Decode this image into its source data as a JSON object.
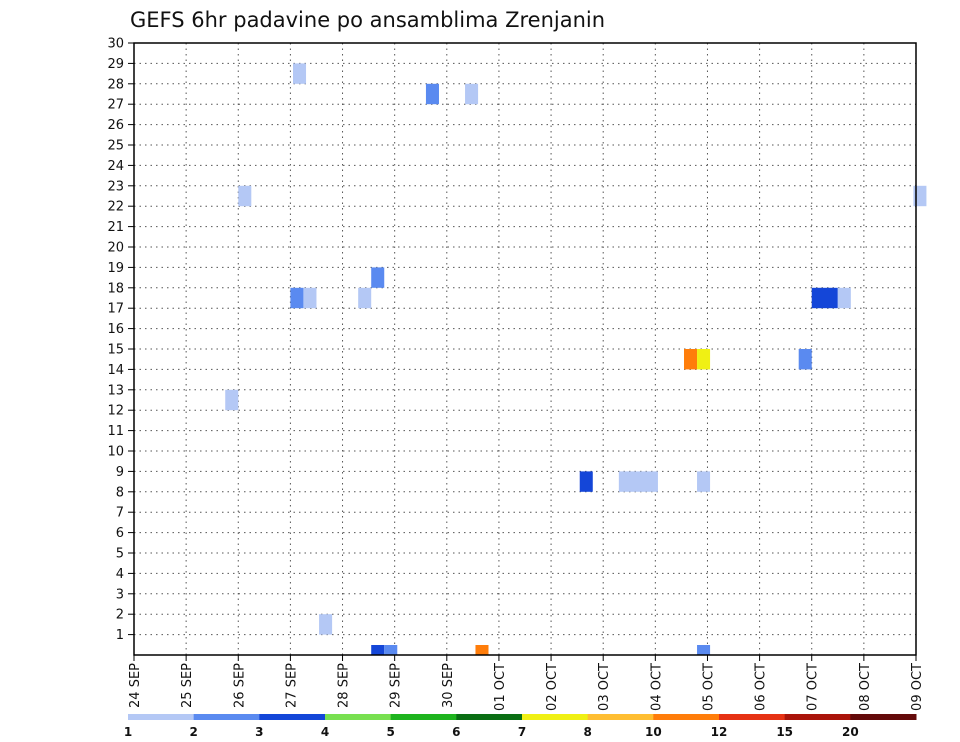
{
  "chart_data": {
    "type": "heatmap",
    "title": "GEFS 6hr padavine po ansamblima Zrenjanin",
    "xlabel": "",
    "ylabel": "",
    "x_range_days": [
      0,
      15
    ],
    "y_range": [
      0,
      30
    ],
    "y_ticks": [
      1,
      2,
      3,
      4,
      5,
      6,
      7,
      8,
      9,
      10,
      11,
      12,
      13,
      14,
      15,
      16,
      17,
      18,
      19,
      20,
      21,
      22,
      23,
      24,
      25,
      26,
      27,
      28,
      29,
      30
    ],
    "x_tick_labels": [
      "24 SEP",
      "25 SEP",
      "26 SEP",
      "27 SEP",
      "28 SEP",
      "29 SEP",
      "30 SEP",
      "01 OCT",
      "02 OCT",
      "03 OCT",
      "04 OCT",
      "05 OCT",
      "06 OCT",
      "07 OCT",
      "08 OCT",
      "09 OCT"
    ],
    "grid": true,
    "colorbar": {
      "bounds": [
        1,
        2,
        3,
        4,
        5,
        6,
        7,
        8,
        10,
        12,
        15,
        20
      ],
      "labels": [
        "1",
        "2",
        "3",
        "4",
        "5",
        "6",
        "7",
        "8",
        "10",
        "12",
        "15",
        "20"
      ],
      "colors": [
        "#b4c8f5",
        "#5a8af0",
        "#1446d8",
        "#78e050",
        "#1eb41e",
        "#0a6e14",
        "#f0f014",
        "#ffbe32",
        "#ff7d0a",
        "#e63214",
        "#aa140a",
        "#640a0a"
      ]
    },
    "cells": [
      {
        "t": 3.05,
        "dt": 0.25,
        "member": 29,
        "bin": 0
      },
      {
        "t": 5.6,
        "dt": 0.25,
        "member": 28,
        "bin": 1
      },
      {
        "t": 6.35,
        "dt": 0.25,
        "member": 28,
        "bin": 0
      },
      {
        "t": 2.0,
        "dt": 0.25,
        "member": 23,
        "bin": 0
      },
      {
        "t": 14.95,
        "dt": 0.25,
        "member": 23,
        "bin": 0
      },
      {
        "t": 4.55,
        "dt": 0.25,
        "member": 19,
        "bin": 1
      },
      {
        "t": 3.0,
        "dt": 0.25,
        "member": 18,
        "bin": 1
      },
      {
        "t": 3.25,
        "dt": 0.25,
        "member": 18,
        "bin": 0
      },
      {
        "t": 4.3,
        "dt": 0.25,
        "member": 18,
        "bin": 0
      },
      {
        "t": 13.0,
        "dt": 0.5,
        "member": 18,
        "bin": 2
      },
      {
        "t": 13.5,
        "dt": 0.25,
        "member": 18,
        "bin": 0
      },
      {
        "t": 10.55,
        "dt": 0.25,
        "member": 15,
        "bin": 8
      },
      {
        "t": 10.8,
        "dt": 0.25,
        "member": 15,
        "bin": 6
      },
      {
        "t": 12.75,
        "dt": 0.25,
        "member": 15,
        "bin": 1
      },
      {
        "t": 1.75,
        "dt": 0.25,
        "member": 13,
        "bin": 0
      },
      {
        "t": 8.55,
        "dt": 0.25,
        "member": 9,
        "bin": 2
      },
      {
        "t": 9.3,
        "dt": 0.75,
        "member": 9,
        "bin": 0
      },
      {
        "t": 10.8,
        "dt": 0.25,
        "member": 9,
        "bin": 0
      },
      {
        "t": 3.55,
        "dt": 0.25,
        "member": 2,
        "bin": 0
      },
      {
        "t": 4.55,
        "dt": 0.25,
        "member": 0,
        "bin": 2
      },
      {
        "t": 4.8,
        "dt": 0.25,
        "member": 0,
        "bin": 1
      },
      {
        "t": 6.55,
        "dt": 0.25,
        "member": 0,
        "bin": 8
      },
      {
        "t": 10.8,
        "dt": 0.25,
        "member": 0,
        "bin": 1
      }
    ]
  }
}
